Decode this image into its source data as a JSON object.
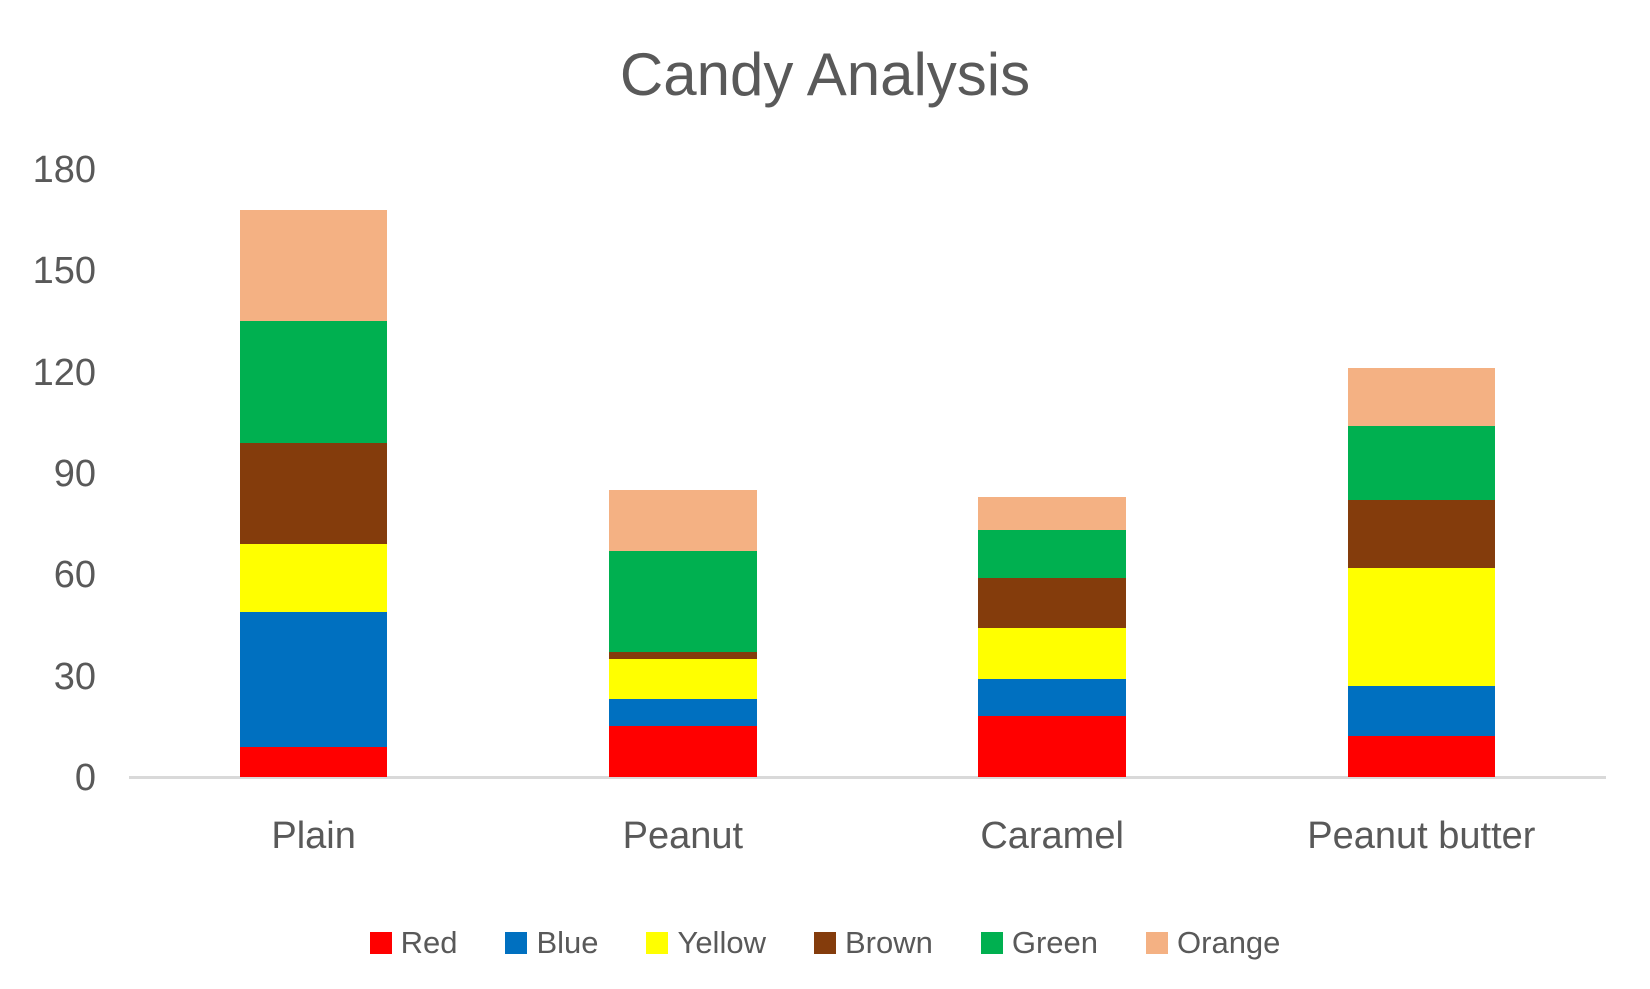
{
  "title": "Candy Analysis",
  "chart_data": {
    "type": "bar",
    "stacked": true,
    "title": "Candy Analysis",
    "categories": [
      "Plain",
      "Peanut",
      "Caramel",
      "Peanut butter"
    ],
    "series": [
      {
        "name": "Red",
        "color": "#FF0000",
        "values": [
          9,
          15,
          18,
          12
        ]
      },
      {
        "name": "Blue",
        "color": "#0070C0",
        "values": [
          40,
          8,
          11,
          15
        ]
      },
      {
        "name": "Yellow",
        "color": "#FFFF00",
        "values": [
          20,
          12,
          15,
          35
        ]
      },
      {
        "name": "Brown",
        "color": "#843C0C",
        "values": [
          30,
          2,
          15,
          20
        ]
      },
      {
        "name": "Green",
        "color": "#00B050",
        "values": [
          36,
          30,
          14,
          22
        ]
      },
      {
        "name": "Orange",
        "color": "#F4B183",
        "values": [
          33,
          18,
          10,
          17
        ]
      }
    ],
    "totals": [
      168,
      85,
      83,
      121
    ],
    "y_axis": {
      "min": 0,
      "max": 180,
      "step": 30,
      "ticks": [
        "0",
        "30",
        "60",
        "90",
        "120",
        "150",
        "180"
      ]
    },
    "xlabel": "",
    "ylabel": "",
    "gridlines": false,
    "legend_position": "bottom"
  },
  "colors": {
    "text": "#595959",
    "axis_line": "#D9D9D9",
    "background": "#FFFFFF"
  }
}
